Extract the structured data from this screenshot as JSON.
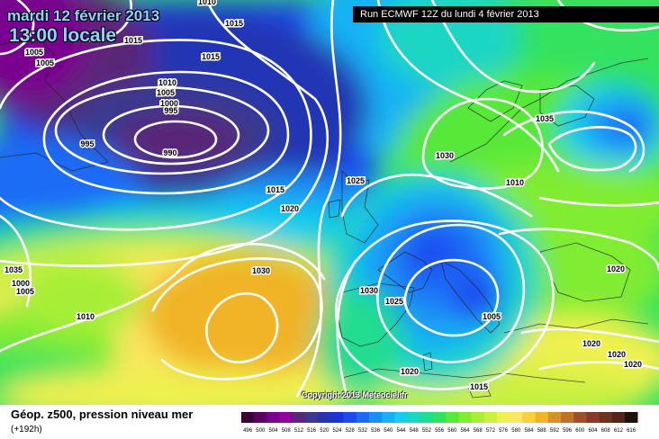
{
  "header": {
    "date": "mardi 12 février 2013",
    "time": "13:00 locale",
    "run": "Run ECMWF 12Z du lundi 4 février 2013"
  },
  "footer": {
    "parameter": "Géop. z500, pression niveau mer",
    "lead": "(+192h)",
    "copyright": "Copyright 2013 Meteociel.fr"
  },
  "legend": {
    "values": [
      "496",
      "500",
      "504",
      "508",
      "512",
      "516",
      "520",
      "524",
      "528",
      "532",
      "536",
      "540",
      "544",
      "548",
      "552",
      "556",
      "560",
      "564",
      "568",
      "572",
      "576",
      "580",
      "584",
      "588",
      "592",
      "596",
      "600",
      "604",
      "608",
      "612",
      "616"
    ],
    "colors": [
      "#3a0038",
      "#5a0060",
      "#7a0090",
      "#90009c",
      "#5a2878",
      "#383a90",
      "#2434b4",
      "#1c34d8",
      "#1a4cf0",
      "#1a6cf6",
      "#1a90f6",
      "#18b2f4",
      "#18ccec",
      "#1ad6c4",
      "#20dc90",
      "#34e260",
      "#58e838",
      "#80ec30",
      "#a8ee38",
      "#ccf040",
      "#eef050",
      "#fae660",
      "#f8d040",
      "#f0b428",
      "#d89028",
      "#c07028",
      "#a05028",
      "#8a3a2a",
      "#70301e",
      "#502418",
      "#201010"
    ]
  },
  "isobars": [
    {
      "label": "1010",
      "color": "#000000"
    },
    {
      "label": "1015",
      "color": "#000000"
    },
    {
      "label": "1005",
      "color": "#000000"
    },
    {
      "label": "1005",
      "color": "#000000"
    },
    {
      "label": "1015",
      "color": "#000000"
    },
    {
      "label": "1015",
      "color": "#000000"
    },
    {
      "label": "1010",
      "color": "#000000"
    },
    {
      "label": "1005",
      "color": "#000000"
    },
    {
      "label": "1000",
      "color": "#000000"
    },
    {
      "label": "995",
      "color": "#000000"
    },
    {
      "label": "995",
      "color": "#000000"
    },
    {
      "label": "990",
      "color": "#000000"
    },
    {
      "label": "1015",
      "color": "#000000"
    },
    {
      "label": "1020",
      "color": "#000000"
    },
    {
      "label": "1025",
      "color": "#000000"
    },
    {
      "label": "1030",
      "color": "#000000"
    },
    {
      "label": "1035",
      "color": "#000000"
    },
    {
      "label": "1035",
      "color": "#000000"
    },
    {
      "label": "1000",
      "color": "#000000"
    },
    {
      "label": "1005",
      "color": "#000000"
    },
    {
      "label": "1010",
      "color": "#000000"
    },
    {
      "label": "1030",
      "color": "#000000"
    },
    {
      "label": "1030",
      "color": "#000000"
    },
    {
      "label": "1025",
      "color": "#000000"
    },
    {
      "label": "1020",
      "color": "#000000"
    },
    {
      "label": "1005",
      "color": "#000000"
    },
    {
      "label": "1020",
      "color": "#000000"
    },
    {
      "label": "1020",
      "color": "#000000"
    },
    {
      "label": "1020",
      "color": "#000000"
    },
    {
      "label": "1020",
      "color": "#000000"
    },
    {
      "label": "1015",
      "color": "#000000"
    },
    {
      "label": "1010",
      "color": "#000000"
    }
  ]
}
